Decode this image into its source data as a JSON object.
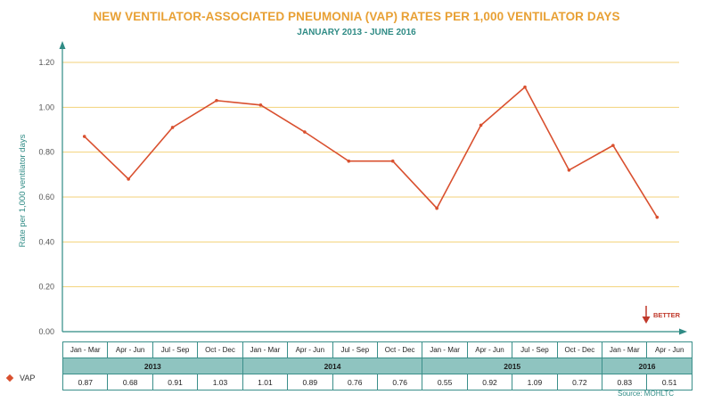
{
  "chart_data": {
    "type": "line",
    "title": "NEW VENTILATOR-ASSOCIATED PNEUMONIA (VAP) RATES PER 1,000 VENTILATOR DAYS",
    "subtitle": "JANUARY 2013 - JUNE 2016",
    "ylabel": "Rate per 1,000 ventilator days",
    "ylim": [
      0,
      1.2
    ],
    "yticks": [
      "0.00",
      "0.20",
      "0.40",
      "0.60",
      "0.80",
      "1.00",
      "1.20"
    ],
    "categories": [
      "Jan - Mar",
      "Apr - Jun",
      "Jul - Sep",
      "Oct - Dec",
      "Jan - Mar",
      "Apr - Jun",
      "Jul - Sep",
      "Oct - Dec",
      "Jan - Mar",
      "Apr - Jun",
      "Jul - Sep",
      "Oct - Dec",
      "Jan - Mar",
      "Apr - Jun"
    ],
    "years": [
      {
        "label": "2013",
        "span": 4
      },
      {
        "label": "2014",
        "span": 4
      },
      {
        "label": "2015",
        "span": 4
      },
      {
        "label": "2016",
        "span": 2
      }
    ],
    "series": [
      {
        "name": "VAP",
        "color": "#d9502f",
        "values": [
          0.87,
          0.68,
          0.91,
          1.03,
          1.01,
          0.89,
          0.76,
          0.76,
          0.55,
          0.92,
          1.09,
          0.72,
          0.83,
          0.51
        ],
        "labels": [
          "0.87",
          "0.68",
          "0.91",
          "1.03",
          "1.01",
          "0.89",
          "0.76",
          "0.76",
          "0.55",
          "0.92",
          "1.09",
          "0.72",
          "0.83",
          "0.51"
        ]
      }
    ],
    "grid": true,
    "gridline_color": "#f3d27a",
    "axis_color": "#2f8b85",
    "better_label": "BETTER",
    "source": "Source:  MOHLTC"
  }
}
